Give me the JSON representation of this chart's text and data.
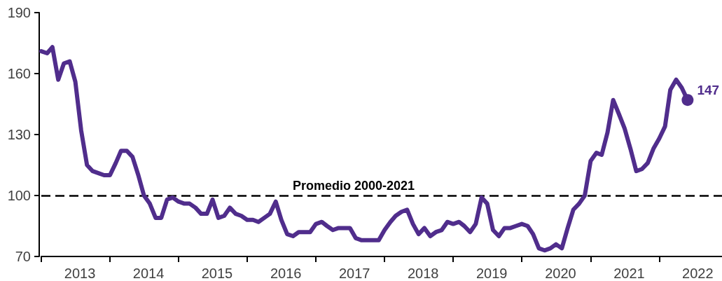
{
  "chart_data": {
    "type": "line",
    "x": [
      "2013-01",
      "2013-02",
      "2013-03",
      "2013-04",
      "2013-05",
      "2013-06",
      "2013-07",
      "2013-08",
      "2013-09",
      "2013-10",
      "2013-11",
      "2013-12",
      "2014-01",
      "2014-02",
      "2014-03",
      "2014-04",
      "2014-05",
      "2014-06",
      "2014-07",
      "2014-08",
      "2014-09",
      "2014-10",
      "2014-11",
      "2014-12",
      "2015-01",
      "2015-02",
      "2015-03",
      "2015-04",
      "2015-05",
      "2015-06",
      "2015-07",
      "2015-08",
      "2015-09",
      "2015-10",
      "2015-11",
      "2015-12",
      "2016-01",
      "2016-02",
      "2016-03",
      "2016-04",
      "2016-05",
      "2016-06",
      "2016-07",
      "2016-08",
      "2016-09",
      "2016-10",
      "2016-11",
      "2016-12",
      "2017-01",
      "2017-02",
      "2017-03",
      "2017-04",
      "2017-05",
      "2017-06",
      "2017-07",
      "2017-08",
      "2017-09",
      "2017-10",
      "2017-11",
      "2017-12",
      "2018-01",
      "2018-02",
      "2018-03",
      "2018-04",
      "2018-05",
      "2018-06",
      "2018-07",
      "2018-08",
      "2018-09",
      "2018-10",
      "2018-11",
      "2018-12",
      "2019-01",
      "2019-02",
      "2019-03",
      "2019-04",
      "2019-05",
      "2019-06",
      "2019-07",
      "2019-08",
      "2019-09",
      "2019-10",
      "2019-11",
      "2019-12",
      "2020-01",
      "2020-02",
      "2020-03",
      "2020-04",
      "2020-05",
      "2020-06",
      "2020-07",
      "2020-08",
      "2020-09",
      "2020-10",
      "2020-11",
      "2020-12",
      "2021-01",
      "2021-02",
      "2021-03",
      "2021-04",
      "2021-05",
      "2021-06",
      "2021-07",
      "2021-08",
      "2021-09",
      "2021-10",
      "2021-11",
      "2021-12",
      "2022-01",
      "2022-02",
      "2022-03",
      "2022-04",
      "2022-05",
      "2022-06"
    ],
    "series": [
      {
        "color": "#502d8c",
        "values": [
          171,
          170,
          173,
          157,
          165,
          166,
          156,
          132,
          115,
          112,
          111,
          110,
          110,
          116,
          122,
          122,
          119,
          110,
          100,
          96,
          89,
          89,
          98,
          99,
          97,
          96,
          96,
          94,
          91,
          91,
          98,
          89,
          90,
          94,
          91,
          90,
          88,
          88,
          87,
          89,
          91,
          97,
          88,
          81,
          80,
          82,
          82,
          82,
          86,
          87,
          85,
          83,
          84,
          84,
          84,
          79,
          78,
          78,
          78,
          78,
          83,
          87,
          90,
          92,
          93,
          86,
          81,
          84,
          80,
          82,
          83,
          87,
          86,
          87,
          85,
          82,
          86,
          99,
          96,
          83,
          80,
          84,
          84,
          85,
          86,
          85,
          81,
          74,
          73,
          74,
          76,
          74,
          84,
          93,
          96,
          100,
          117,
          121,
          120,
          131,
          147,
          140,
          133,
          123,
          112,
          113,
          116,
          123,
          128,
          134,
          152,
          157,
          153,
          147
        ],
        "value_labels": [
          null,
          null,
          null,
          null,
          null,
          null,
          null,
          null,
          null,
          null,
          null,
          null,
          null,
          null,
          null,
          null,
          null,
          null,
          null,
          null,
          null,
          null,
          null,
          null,
          null,
          null,
          null,
          null,
          null,
          null,
          null,
          null,
          null,
          null,
          null,
          null,
          null,
          null,
          null,
          null,
          null,
          null,
          null,
          null,
          null,
          null,
          null,
          null,
          null,
          null,
          null,
          null,
          null,
          null,
          null,
          null,
          null,
          null,
          null,
          null,
          null,
          null,
          null,
          null,
          null,
          null,
          null,
          null,
          null,
          null,
          null,
          null,
          null,
          null,
          null,
          null,
          null,
          null,
          null,
          null,
          null,
          null,
          null,
          null,
          null,
          null,
          null,
          null,
          null,
          null,
          null,
          null,
          null,
          null,
          null,
          null,
          null,
          null,
          null,
          null,
          null,
          null,
          null,
          null,
          null,
          null,
          null,
          null,
          null,
          null,
          null,
          null,
          null,
          "147"
        ]
      }
    ],
    "xlim": [
      "2013-01",
      "2022-12"
    ],
    "xticks": [
      {
        "value": "2013-01",
        "label": null
      },
      {
        "value": "2014-01",
        "label": null
      },
      {
        "value": "2015-01",
        "label": null
      },
      {
        "value": "2016-01",
        "label": null
      },
      {
        "value": "2017-01",
        "label": null
      },
      {
        "value": "2018-01",
        "label": null
      },
      {
        "value": "2019-01",
        "label": null
      },
      {
        "value": "2020-01",
        "label": null
      },
      {
        "value": "2021-01",
        "label": null
      },
      {
        "value": "2022-01",
        "label": null
      },
      {
        "value": "2013-07-25",
        "label": "2013"
      },
      {
        "value": "2014-07-25",
        "label": "2014"
      },
      {
        "value": "2015-07-25",
        "label": "2015"
      },
      {
        "value": "2016-07-25",
        "label": "2016"
      },
      {
        "value": "2017-07-25",
        "label": "2017"
      },
      {
        "value": "2018-07-25",
        "label": "2018"
      },
      {
        "value": "2019-07-25",
        "label": "2019"
      },
      {
        "value": "2020-07-25",
        "label": "2020"
      },
      {
        "value": "2021-07-25",
        "label": "2021"
      },
      {
        "value": "2022-07-25",
        "label": "2022"
      }
    ],
    "ylim": [
      70,
      190
    ],
    "yticks": [
      70,
      100,
      130,
      160,
      190
    ],
    "line_style": "solid",
    "ref_lines": [
      {
        "axis": "y",
        "value": 100,
        "label": "Promedio 2000-2021",
        "color": "#000000",
        "line_style": "dashed"
      }
    ]
  }
}
